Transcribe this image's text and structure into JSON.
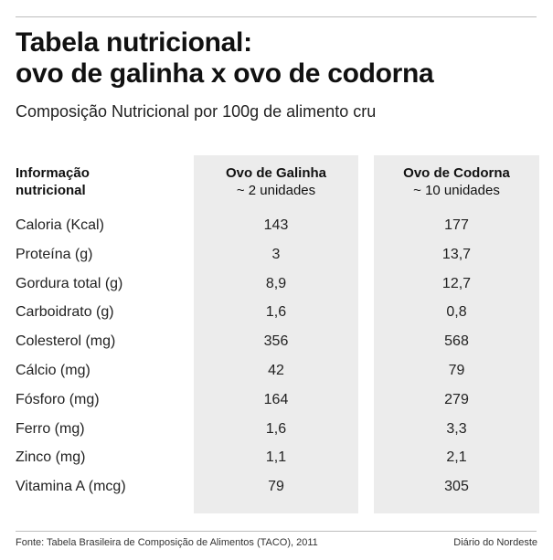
{
  "header": {
    "title_line1": "Tabela nutricional:",
    "title_line2": "ovo de galinha x ovo de codorna",
    "subtitle": "Composição Nutricional por 100g de alimento cru"
  },
  "table": {
    "corner_label": "Informação nutricional",
    "columns": [
      {
        "name": "Ovo de Galinha",
        "units": "~ 2 unidades"
      },
      {
        "name": "Ovo de Codorna",
        "units": "~ 10 unidades"
      }
    ],
    "rows": [
      {
        "label": "Caloria (Kcal)",
        "galinha": "143",
        "codorna": "177"
      },
      {
        "label": "Proteína (g)",
        "galinha": "3",
        "codorna": "13,7"
      },
      {
        "label": "Gordura total (g)",
        "galinha": "8,9",
        "codorna": "12,7"
      },
      {
        "label": "Carboidrato (g)",
        "galinha": "1,6",
        "codorna": "0,8"
      },
      {
        "label": "Colesterol (mg)",
        "galinha": "356",
        "codorna": "568"
      },
      {
        "label": "Cálcio (mg)",
        "galinha": "42",
        "codorna": "79"
      },
      {
        "label": "Fósforo (mg)",
        "galinha": "164",
        "codorna": "279"
      },
      {
        "label": "Ferro (mg)",
        "galinha": "1,6",
        "codorna": "3,3"
      },
      {
        "label": "Zinco (mg)",
        "galinha": "1,1",
        "codorna": "2,1"
      },
      {
        "label": "Vitamina A (mcg)",
        "galinha": "79",
        "codorna": "305"
      }
    ]
  },
  "footer": {
    "source": "Fonte: Tabela Brasileira de Composição de Alimentos (TACO), 2011",
    "brand": "Diário do Nordeste"
  },
  "colors": {
    "column_background": "#ececec",
    "rule": "#bdbdbd",
    "text": "#1a1a1a"
  }
}
